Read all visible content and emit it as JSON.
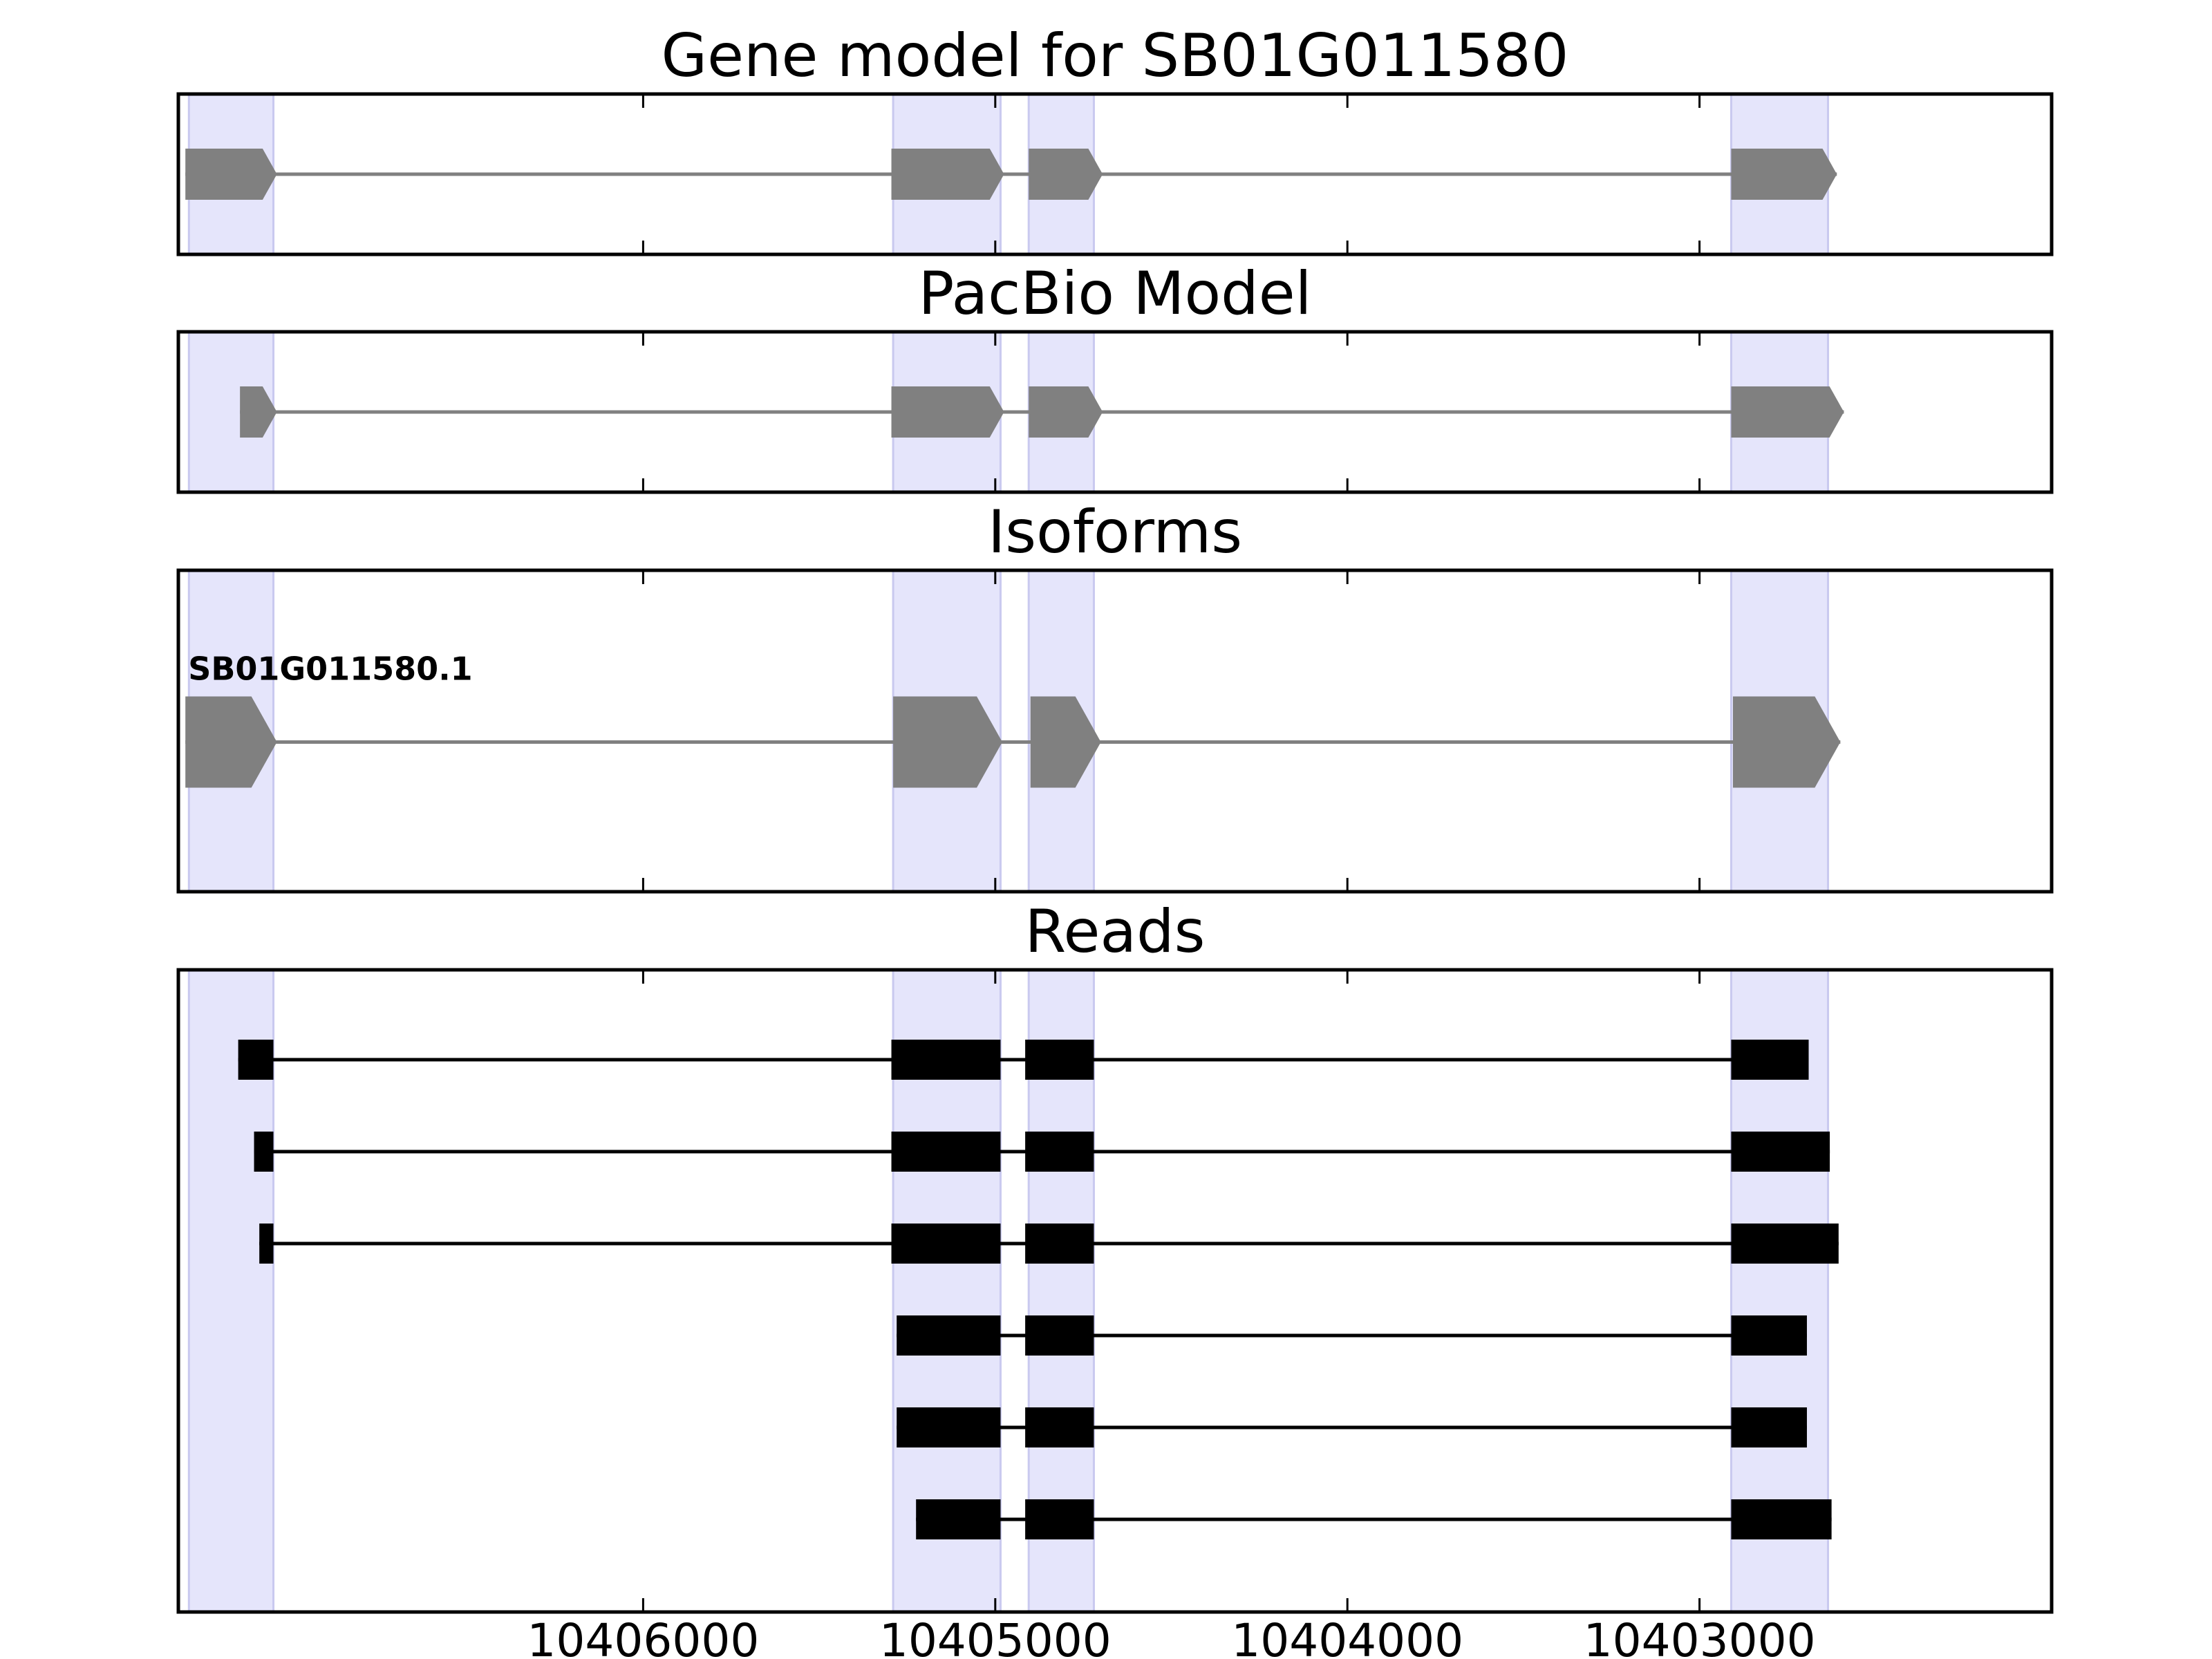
{
  "chart_data": {
    "type": "gene-model",
    "x_axis": {
      "range": [
        10407320,
        10402000
      ],
      "reversed": true,
      "ticks": [
        10406000,
        10405000,
        10404000,
        10403000
      ],
      "tick_labels": [
        "10406000",
        "10405000",
        "10404000",
        "10403000"
      ]
    },
    "highlight_regions": [
      [
        10407290,
        10407050
      ],
      [
        10405290,
        10404985
      ],
      [
        10404905,
        10404720
      ],
      [
        10402910,
        10402635
      ]
    ],
    "panels": [
      {
        "key": "gene_model",
        "title": "Gene model for SB01G011580",
        "style": "grey-arrow",
        "tracks": [
          {
            "exons": [
              [
                10407300,
                10407040
              ],
              [
                10405295,
                10404975
              ],
              [
                10404905,
                10404695
              ],
              [
                10402910,
                10402610
              ]
            ]
          }
        ]
      },
      {
        "key": "pacbio",
        "title": "PacBio Model",
        "style": "grey-arrow",
        "tracks": [
          {
            "exons": [
              [
                10407145,
                10407040
              ],
              [
                10405295,
                10404975
              ],
              [
                10404905,
                10404695
              ],
              [
                10402910,
                10402590
              ]
            ]
          }
        ]
      },
      {
        "key": "isoforms",
        "title": "Isoforms",
        "style": "grey-arrow",
        "tracks": [
          {
            "label": "SB01G011580.1",
            "exons": [
              [
                10407300,
                10407040
              ],
              [
                10405290,
                10404980
              ],
              [
                10404900,
                10404700
              ],
              [
                10402905,
                10402600
              ]
            ]
          }
        ]
      },
      {
        "key": "reads",
        "title": "Reads",
        "style": "black-box",
        "tracks": [
          {
            "exons": [
              [
                10407150,
                10407050
              ],
              [
                10405295,
                10404985
              ],
              [
                10404915,
                10404720
              ],
              [
                10402910,
                10402690
              ]
            ]
          },
          {
            "exons": [
              [
                10407105,
                10407050
              ],
              [
                10405295,
                10404985
              ],
              [
                10404915,
                10404720
              ],
              [
                10402910,
                10402630
              ]
            ]
          },
          {
            "exons": [
              [
                10407090,
                10407050
              ],
              [
                10405295,
                10404985
              ],
              [
                10404915,
                10404720
              ],
              [
                10402910,
                10402605
              ]
            ]
          },
          {
            "exons": [
              [
                10405280,
                10404985
              ],
              [
                10404915,
                10404720
              ],
              [
                10402910,
                10402695
              ]
            ]
          },
          {
            "exons": [
              [
                10405280,
                10404985
              ],
              [
                10404915,
                10404720
              ],
              [
                10402910,
                10402695
              ]
            ]
          },
          {
            "exons": [
              [
                10405225,
                10404985
              ],
              [
                10404915,
                10404720
              ],
              [
                10402910,
                10402625
              ]
            ]
          }
        ]
      }
    ]
  }
}
